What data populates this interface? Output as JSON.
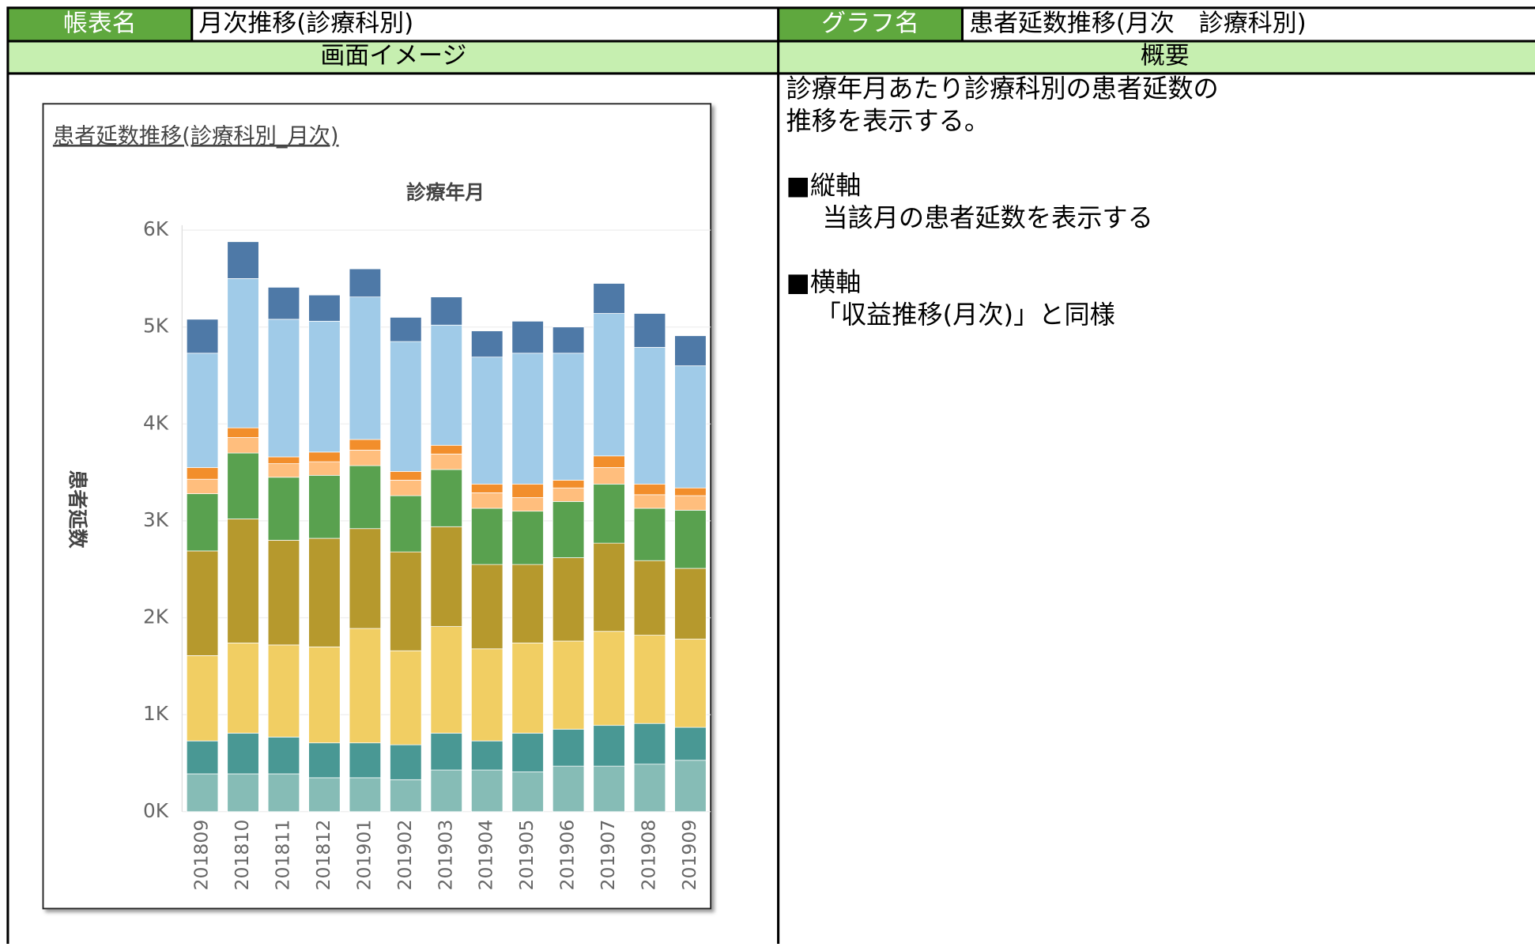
{
  "header": {
    "report_label": "帳表名",
    "report_name": "月次推移(診療科別)",
    "graph_label": "グラフ名",
    "graph_name": "患者延数推移(月次　診療科別)"
  },
  "sections": {
    "image": "画面イメージ",
    "overview": "概要"
  },
  "description": [
    "診療年月あたり診療科別の患者延数の",
    "推移を表示する。",
    "■縦軸",
    "当該月の患者延数を表示する",
    "■横軸",
    "「収益推移(月次)」と同様"
  ],
  "chart_data": {
    "type": "stacked_bar",
    "title": "患者延数推移(診療科別_月次)",
    "x_label": "診療年月",
    "y_label": "患者延数",
    "categories": [
      "201809",
      "201810",
      "201811",
      "201812",
      "201901",
      "201902",
      "201903",
      "201904",
      "201905",
      "201906",
      "201907",
      "201908",
      "201909"
    ],
    "series": [
      {
        "color": "#86bcb6",
        "values": [
          390,
          390,
          390,
          350,
          350,
          330,
          430,
          430,
          410,
          470,
          470,
          490,
          530
        ]
      },
      {
        "color": "#499894",
        "values": [
          340,
          420,
          380,
          360,
          360,
          360,
          380,
          300,
          400,
          380,
          420,
          420,
          340
        ]
      },
      {
        "color": "#f1ce63",
        "values": [
          880,
          930,
          950,
          990,
          1180,
          970,
          1100,
          950,
          930,
          910,
          970,
          910,
          910
        ]
      },
      {
        "color": "#b6992d",
        "values": [
          1080,
          1280,
          1080,
          1120,
          1030,
          1020,
          1030,
          870,
          810,
          860,
          910,
          770,
          730
        ]
      },
      {
        "color": "#59a14f",
        "values": [
          590,
          680,
          650,
          650,
          650,
          580,
          590,
          580,
          550,
          580,
          610,
          540,
          600
        ]
      },
      {
        "color": "#ffbe7d",
        "values": [
          150,
          160,
          140,
          140,
          160,
          160,
          160,
          160,
          140,
          140,
          170,
          140,
          150
        ]
      },
      {
        "color": "#f28e2b",
        "values": [
          120,
          100,
          70,
          100,
          110,
          90,
          90,
          90,
          140,
          80,
          120,
          110,
          80
        ]
      },
      {
        "color": "#a0cbe8",
        "values": [
          1180,
          1540,
          1420,
          1350,
          1470,
          1340,
          1240,
          1310,
          1350,
          1310,
          1470,
          1410,
          1260
        ]
      },
      {
        "color": "#4e79a7",
        "values": [
          350,
          380,
          330,
          270,
          290,
          250,
          290,
          270,
          330,
          270,
          310,
          350,
          310
        ]
      }
    ],
    "ylim": [
      0,
      6000
    ],
    "yticks": [
      {
        "value": 0,
        "label": "0K"
      },
      {
        "value": 1000,
        "label": "1K"
      },
      {
        "value": 2000,
        "label": "2K"
      },
      {
        "value": 3000,
        "label": "3K"
      },
      {
        "value": 4000,
        "label": "4K"
      },
      {
        "value": 5000,
        "label": "5K"
      },
      {
        "value": 6000,
        "label": "6K"
      }
    ],
    "grid": true
  }
}
